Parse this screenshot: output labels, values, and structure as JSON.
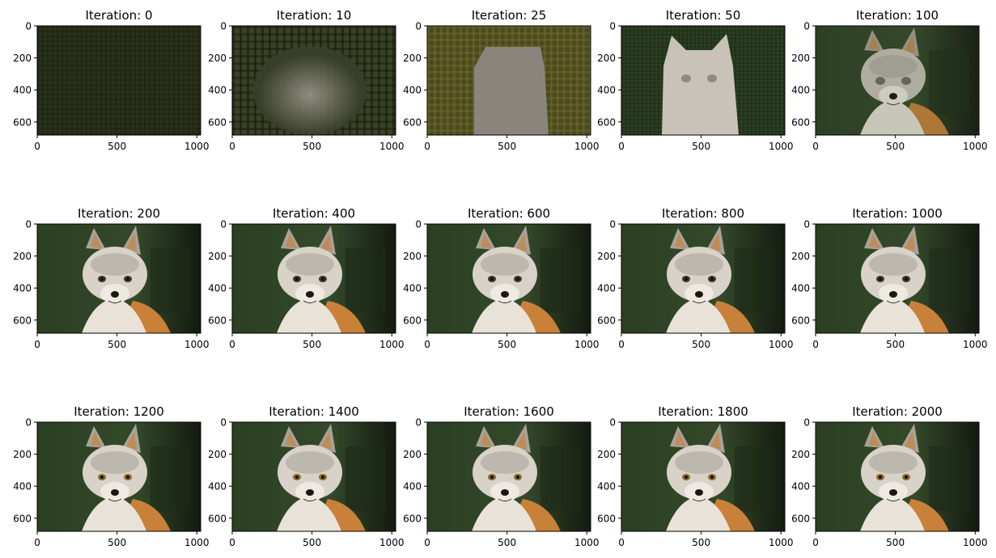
{
  "chart_data": {
    "type": "image-grid",
    "rows": 3,
    "cols": 5,
    "xlim": [
      0,
      1024
    ],
    "ylim": [
      682,
      0
    ],
    "xticks": [
      0,
      500,
      1000
    ],
    "yticks": [
      0,
      200,
      400,
      600
    ],
    "panels": [
      {
        "title": "Iteration: 0",
        "iteration": 0
      },
      {
        "title": "Iteration: 10",
        "iteration": 10
      },
      {
        "title": "Iteration: 25",
        "iteration": 25
      },
      {
        "title": "Iteration: 50",
        "iteration": 50
      },
      {
        "title": "Iteration: 100",
        "iteration": 100
      },
      {
        "title": "Iteration: 200",
        "iteration": 200
      },
      {
        "title": "Iteration: 400",
        "iteration": 400
      },
      {
        "title": "Iteration: 600",
        "iteration": 600
      },
      {
        "title": "Iteration: 800",
        "iteration": 800
      },
      {
        "title": "Iteration: 1000",
        "iteration": 1000
      },
      {
        "title": "Iteration: 1200",
        "iteration": 1200
      },
      {
        "title": "Iteration: 1400",
        "iteration": 1400
      },
      {
        "title": "Iteration: 1600",
        "iteration": 1600
      },
      {
        "title": "Iteration: 1800",
        "iteration": 1800
      },
      {
        "title": "Iteration: 2000",
        "iteration": 2000
      }
    ]
  },
  "colors": {
    "background_dark": "#1f2a14",
    "background_green": "#2f4424",
    "fur_light": "#d8d2c8",
    "fur_grey": "#a8a29a",
    "fur_orange": "#c9813a",
    "nose": "#1a1614",
    "olive": "#5e5e22",
    "gray_blob": "#8a857c"
  }
}
